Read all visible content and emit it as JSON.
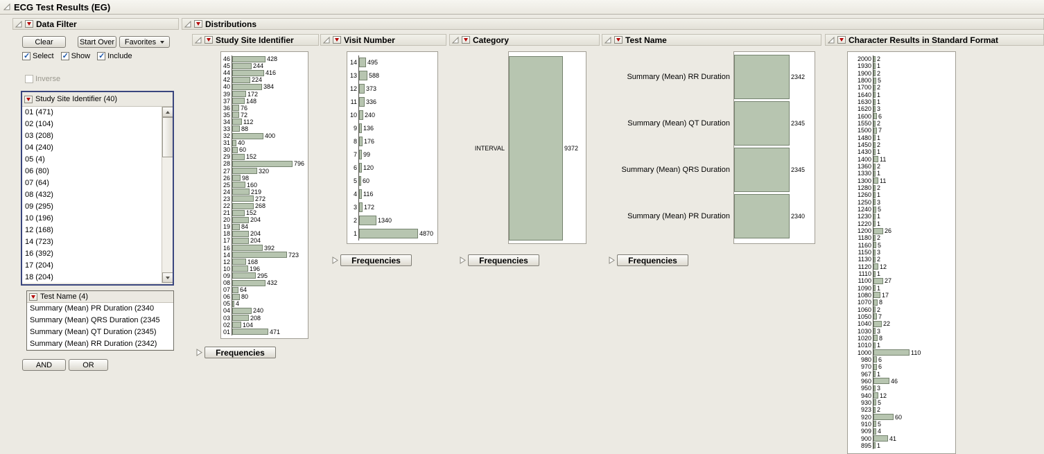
{
  "window": {
    "title": "ECG Test Results (EG)"
  },
  "data_filter": {
    "title": "Data Filter",
    "clear_button": "Clear",
    "start_over_button": "Start Over",
    "favorites_button": "Favorites",
    "select_label": "Select",
    "show_label": "Show",
    "include_label": "Include",
    "inverse_label": "Inverse",
    "and_button": "AND",
    "or_button": "OR",
    "site_list": {
      "title": "Study Site Identifier (40)",
      "items": [
        "01 (471)",
        "02 (104)",
        "03 (208)",
        "04 (240)",
        "05 (4)",
        "06 (80)",
        "07 (64)",
        "08 (432)",
        "09 (295)",
        "10 (196)",
        "12 (168)",
        "14 (723)",
        "16 (392)",
        "17 (204)",
        "18 (204)"
      ]
    },
    "test_list": {
      "title": "Test Name (4)",
      "items": [
        "Summary (Mean) PR Duration (2340",
        "Summary (Mean) QRS Duration (2345",
        "Summary (Mean) QT Duration (2345)",
        "Summary (Mean) RR Duration (2342)"
      ]
    }
  },
  "distributions": {
    "title": "Distributions",
    "frequencies_label": "Frequencies"
  },
  "chart_data": [
    {
      "type": "bar",
      "orientation": "horizontal",
      "title": "Study Site Identifier",
      "categories": [
        "46",
        "45",
        "44",
        "42",
        "40",
        "39",
        "37",
        "36",
        "35",
        "34",
        "33",
        "32",
        "31",
        "30",
        "29",
        "28",
        "27",
        "26",
        "25",
        "24",
        "23",
        "22",
        "21",
        "20",
        "19",
        "18",
        "17",
        "16",
        "14",
        "12",
        "10",
        "09",
        "08",
        "07",
        "06",
        "05",
        "04",
        "03",
        "02",
        "01"
      ],
      "values": [
        428,
        244,
        416,
        224,
        384,
        172,
        148,
        76,
        72,
        112,
        88,
        400,
        40,
        60,
        152,
        796,
        320,
        98,
        160,
        219,
        272,
        268,
        152,
        204,
        84,
        204,
        204,
        392,
        723,
        168,
        196,
        295,
        432,
        64,
        80,
        4,
        240,
        208,
        104,
        471
      ],
      "value_labels_shown": true
    },
    {
      "type": "bar",
      "orientation": "horizontal",
      "title": "Visit Number",
      "categories": [
        "14",
        "13",
        "12",
        "11",
        "10",
        "9",
        "8",
        "7",
        "6",
        "5",
        "4",
        "3",
        "2",
        "1"
      ],
      "values": [
        495,
        588,
        373,
        336,
        240,
        136,
        176,
        99,
        120,
        60,
        116,
        172,
        1340,
        4870
      ],
      "value_labels_shown": true
    },
    {
      "type": "bar",
      "orientation": "horizontal",
      "title": "Category",
      "categories": [
        "INTERVAL"
      ],
      "values": [
        9372
      ],
      "value_labels_shown": true
    },
    {
      "type": "bar",
      "orientation": "horizontal",
      "title": "Test Name",
      "categories": [
        "Summary (Mean) RR Duration",
        "Summary (Mean) QT Duration",
        "Summary (Mean) QRS Duration",
        "Summary (Mean) PR Duration"
      ],
      "values": [
        2342,
        2345,
        2345,
        2340
      ],
      "value_labels_shown": true
    },
    {
      "type": "bar",
      "orientation": "horizontal",
      "title": "Character Results in Standard Format",
      "categories": [
        "2000",
        "1930",
        "1900",
        "1800",
        "1700",
        "1640",
        "1630",
        "1620",
        "1600",
        "1550",
        "1500",
        "1480",
        "1450",
        "1430",
        "1400",
        "1360",
        "1330",
        "1300",
        "1280",
        "1260",
        "1250",
        "1240",
        "1230",
        "1220",
        "1200",
        "1180",
        "1160",
        "1150",
        "1130",
        "1120",
        "1110",
        "1100",
        "1090",
        "1080",
        "1070",
        "1060",
        "1050",
        "1040",
        "1030",
        "1020",
        "1010",
        "1000",
        "980",
        "970",
        "967",
        "960",
        "950",
        "940",
        "930",
        "923",
        "920",
        "910",
        "909",
        "900",
        "895"
      ],
      "values": [
        2,
        1,
        2,
        5,
        2,
        1,
        1,
        3,
        6,
        2,
        7,
        1,
        2,
        1,
        11,
        2,
        1,
        11,
        2,
        1,
        3,
        5,
        1,
        1,
        26,
        2,
        5,
        3,
        2,
        12,
        1,
        27,
        1,
        17,
        8,
        2,
        7,
        22,
        3,
        8,
        1,
        110,
        6,
        6,
        1,
        46,
        3,
        12,
        5,
        2,
        60,
        5,
        4,
        41,
        1
      ],
      "value_labels_shown": true
    }
  ],
  "colors": {
    "bar_fill": "#b7c5b0",
    "bar_border": "#75836f",
    "red_triangle": "#b40000",
    "selection_border": "#39457e",
    "background": "#eceae3"
  }
}
